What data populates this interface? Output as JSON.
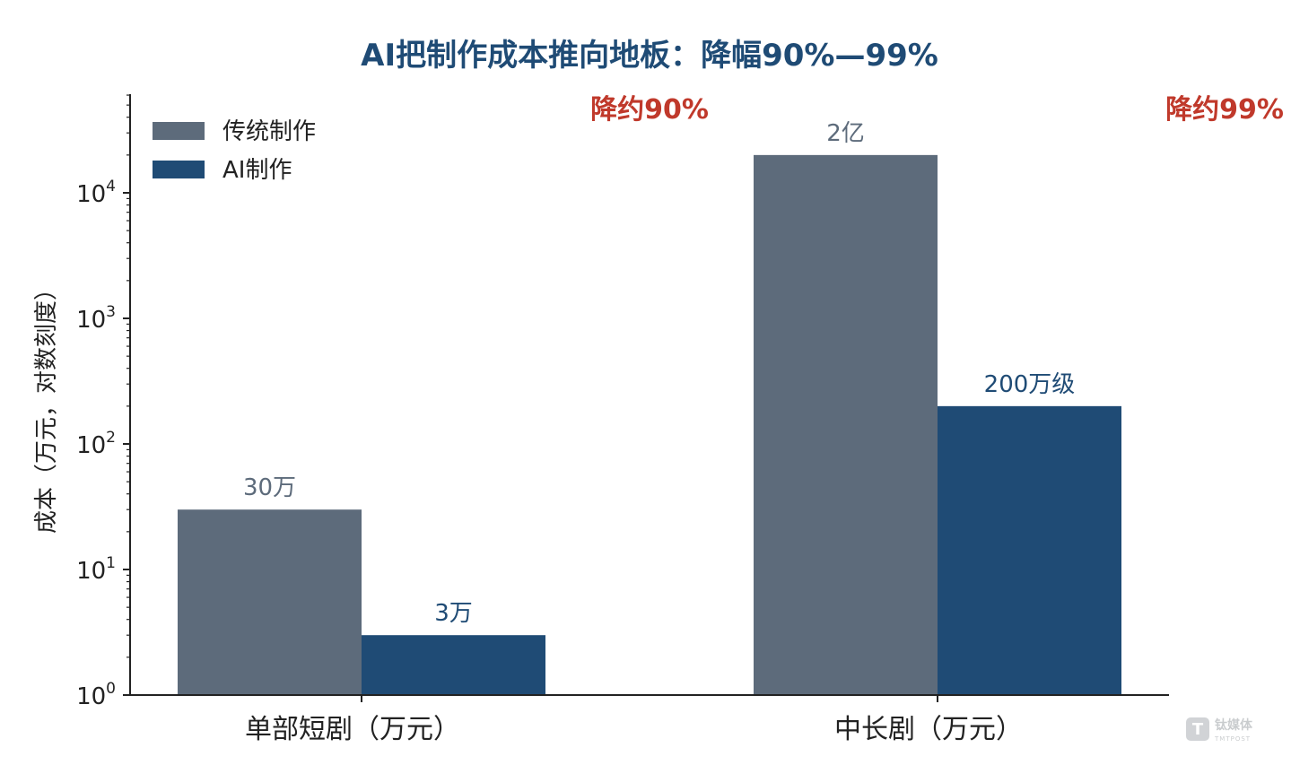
{
  "chart_data": {
    "type": "bar",
    "title": "AI把制作成本推向地板：降幅90%—99%",
    "xlabel": "",
    "ylabel": "成本（万元，对数刻度）",
    "yscale": "log",
    "ylim": [
      1,
      60000
    ],
    "categories": [
      "单部短剧（万元）",
      "中长剧（万元）"
    ],
    "series": [
      {
        "name": "传统制作",
        "color": "#5d6b7b",
        "values": [
          30,
          20000
        ],
        "labels": [
          "30万",
          "2亿"
        ]
      },
      {
        "name": "AI制作",
        "color": "#1f4b75",
        "values": [
          3,
          200
        ],
        "labels": [
          "3万",
          "200万级"
        ]
      }
    ],
    "yticks": [
      {
        "value": 1,
        "base": "10",
        "exp": "0"
      },
      {
        "value": 10,
        "base": "10",
        "exp": "1"
      },
      {
        "value": 100,
        "base": "10",
        "exp": "2"
      },
      {
        "value": 1000,
        "base": "10",
        "exp": "3"
      },
      {
        "value": 10000,
        "base": "10",
        "exp": "4"
      }
    ],
    "annotations": [
      {
        "text": "降约90%",
        "category": 0,
        "color": "#c0392b"
      },
      {
        "text": "降约99%",
        "category": 1,
        "color": "#c0392b"
      }
    ],
    "legend_position": "top-left",
    "grid": false
  },
  "colors": {
    "title": "#1f4b75",
    "annotation": "#c0392b",
    "axis": "#222222"
  },
  "watermark": {
    "icon": "T",
    "text_cn": "钛媒体",
    "text_en": "TMTPOST"
  }
}
